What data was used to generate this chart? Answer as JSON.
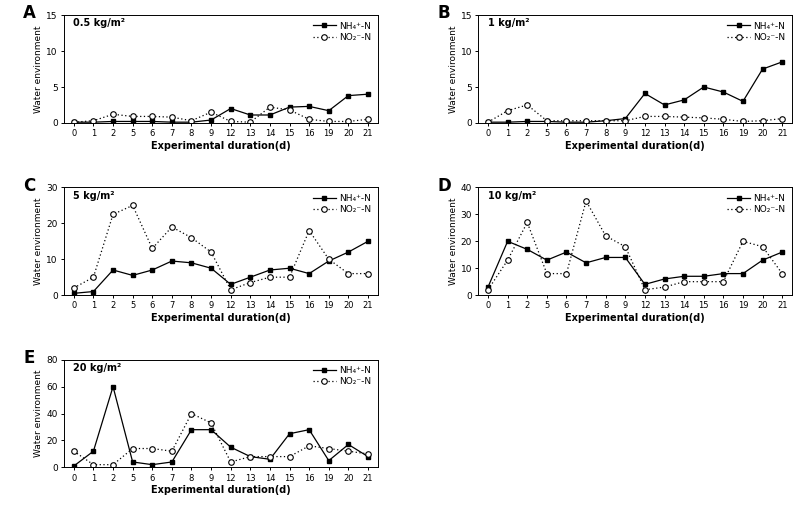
{
  "x_labels": [
    "0",
    "1",
    "2",
    "5",
    "6",
    "7",
    "8",
    "9",
    "12",
    "13",
    "14",
    "15",
    "16",
    "19",
    "20",
    "21"
  ],
  "panels": [
    {
      "label": "A",
      "title": "0.5 kg/m²",
      "ylim": [
        0,
        15
      ],
      "yticks": [
        0,
        5,
        10,
        15
      ],
      "nh4_n": [
        0.1,
        0.1,
        0.2,
        0.2,
        0.2,
        0.1,
        0.1,
        0.4,
        2.0,
        1.1,
        1.1,
        2.2,
        2.3,
        1.7,
        3.8,
        4.0
      ],
      "no2_n": [
        0.1,
        0.3,
        1.2,
        0.9,
        0.9,
        0.8,
        0.3,
        1.5,
        0.2,
        0.1,
        2.2,
        1.8,
        0.5,
        0.2,
        0.2,
        0.5
      ]
    },
    {
      "label": "B",
      "title": "1 kg/m²",
      "ylim": [
        0,
        15
      ],
      "yticks": [
        0,
        5,
        10,
        15
      ],
      "nh4_n": [
        0.1,
        0.1,
        0.2,
        0.2,
        0.1,
        0.1,
        0.3,
        0.6,
        4.1,
        2.5,
        3.2,
        5.0,
        4.3,
        3.0,
        7.5,
        8.5
      ],
      "no2_n": [
        0.1,
        1.7,
        2.5,
        0.3,
        0.3,
        0.3,
        0.3,
        0.3,
        0.9,
        0.9,
        0.8,
        0.7,
        0.5,
        0.2,
        0.3,
        0.6
      ]
    },
    {
      "label": "C",
      "title": "5 kg/m²",
      "ylim": [
        0,
        30
      ],
      "yticks": [
        0,
        10,
        20,
        30
      ],
      "nh4_n": [
        0.5,
        1.0,
        7.0,
        5.5,
        7.0,
        9.5,
        9.0,
        7.5,
        3.0,
        5.0,
        7.0,
        7.5,
        6.0,
        9.5,
        12.0,
        15.0
      ],
      "no2_n": [
        2.0,
        5.0,
        22.5,
        25.0,
        13.0,
        19.0,
        16.0,
        12.0,
        1.5,
        3.5,
        5.0,
        5.0,
        18.0,
        10.0,
        6.0,
        6.0
      ]
    },
    {
      "label": "D",
      "title": "10 kg/m²",
      "ylim": [
        0,
        40
      ],
      "yticks": [
        0,
        10,
        20,
        30,
        40
      ],
      "nh4_n": [
        3.0,
        20.0,
        17.0,
        13.0,
        16.0,
        12.0,
        14.0,
        14.0,
        4.0,
        6.0,
        7.0,
        7.0,
        8.0,
        8.0,
        13.0,
        16.0
      ],
      "no2_n": [
        2.0,
        13.0,
        27.0,
        8.0,
        8.0,
        35.0,
        22.0,
        18.0,
        2.0,
        3.0,
        5.0,
        5.0,
        5.0,
        20.0,
        18.0,
        8.0
      ]
    },
    {
      "label": "E",
      "title": "20 kg/m²",
      "ylim": [
        0,
        80
      ],
      "yticks": [
        0,
        20,
        40,
        60,
        80
      ],
      "nh4_n": [
        1.0,
        12.0,
        60.0,
        4.0,
        2.0,
        4.0,
        28.0,
        28.0,
        15.0,
        8.0,
        6.0,
        25.0,
        28.0,
        5.0,
        17.0,
        8.0
      ],
      "no2_n": [
        12.0,
        2.0,
        2.0,
        14.0,
        14.0,
        12.0,
        40.0,
        33.0,
        4.0,
        8.0,
        8.0,
        8.0,
        16.0,
        14.0,
        12.0,
        10.0
      ]
    }
  ],
  "xlabel": "Experimental duration(d)",
  "ylabel": "Water environment",
  "nh4_label": "NH₄⁺-N",
  "no2_label": "NO₂⁻-N",
  "line_color": "black",
  "bg_color": "white"
}
